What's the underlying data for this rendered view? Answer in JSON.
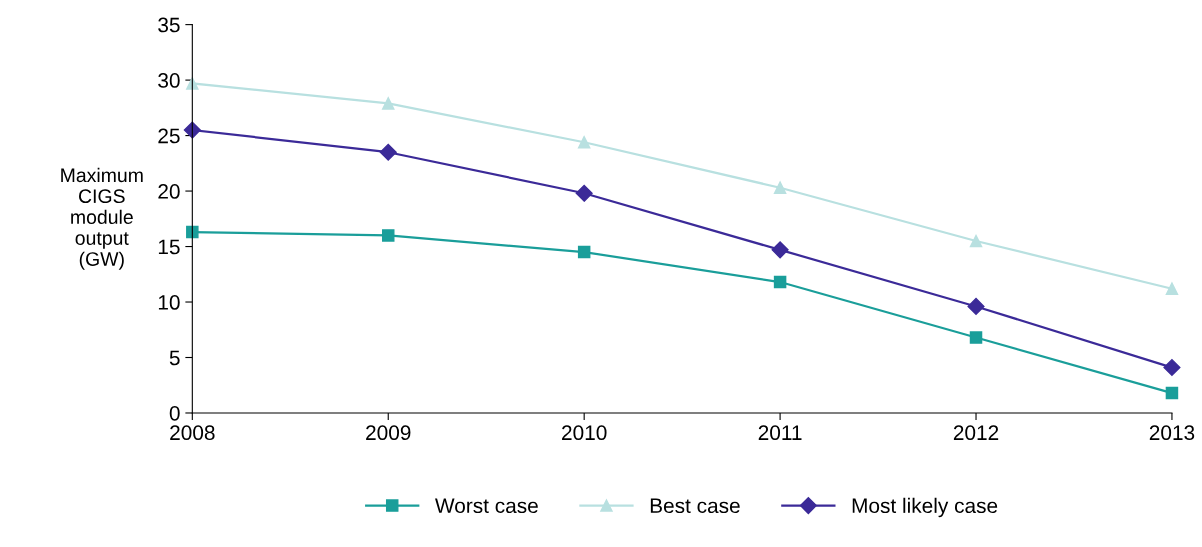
{
  "chart_data": {
    "type": "line",
    "ylabel": "Maximum\nCIGS\nmodule\noutput\n(GW)",
    "x": [
      2008,
      2009,
      2010,
      2011,
      2012,
      2013
    ],
    "xlim": [
      2008,
      2013
    ],
    "xticks": [
      2008,
      2009,
      2010,
      2011,
      2012,
      2013
    ],
    "ylim": [
      0,
      35
    ],
    "yticks": [
      0,
      5,
      10,
      15,
      20,
      25,
      30,
      35
    ],
    "grid": false,
    "legend": "bottom",
    "series": [
      {
        "name": "Worst case",
        "color": "#1a9e9a",
        "marker": "square",
        "values": [
          16.3,
          16.0,
          14.5,
          11.8,
          6.8,
          1.8
        ]
      },
      {
        "name": "Best case",
        "color": "#b8e0e0",
        "marker": "triangle",
        "values": [
          29.7,
          27.9,
          24.4,
          20.3,
          15.5,
          11.2
        ]
      },
      {
        "name": "Most likely case",
        "color": "#3b2a98",
        "marker": "diamond",
        "values": [
          25.5,
          23.5,
          19.8,
          14.7,
          9.6,
          4.1
        ]
      }
    ]
  }
}
